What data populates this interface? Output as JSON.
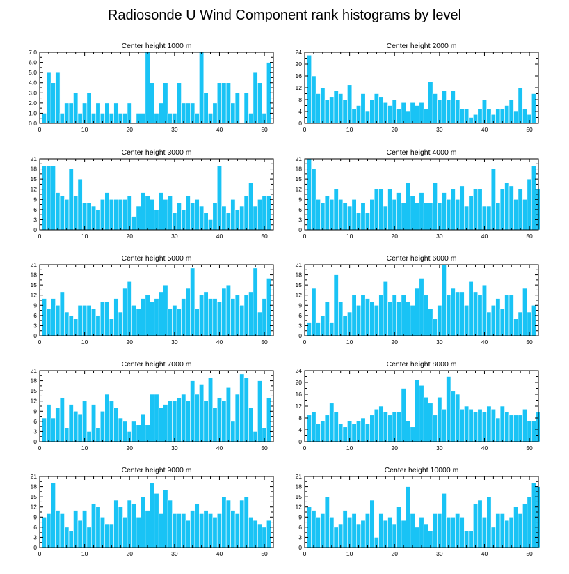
{
  "title": "Radiosonde U Wind Component rank histograms by level",
  "colors": {
    "bar": "#19c3f5",
    "background": "#ffffff",
    "axis": "#000000"
  },
  "chart_data": [
    {
      "type": "bar",
      "title": "Center height 1000 m",
      "xlim": [
        0,
        52
      ],
      "ylim": [
        0,
        7
      ],
      "x_ticks": [
        0,
        10,
        20,
        30,
        40,
        50
      ],
      "y_ticks": [
        0,
        1,
        2,
        3,
        4,
        5,
        6,
        7
      ],
      "y_tick_labels": [
        "0.0",
        "1.0",
        "2.0",
        "3.0",
        "4.0",
        "5.0",
        "6.0",
        "7.0"
      ],
      "values": [
        1,
        5,
        4,
        5,
        1,
        2,
        2,
        3,
        1,
        2,
        3,
        1,
        2,
        1,
        2,
        1,
        2,
        1,
        1,
        2,
        0,
        1,
        1,
        7,
        4,
        1,
        2,
        4,
        1,
        1,
        4,
        2,
        2,
        2,
        1,
        7,
        3,
        1,
        2,
        4,
        4,
        4,
        2,
        3,
        0,
        3,
        1,
        5,
        4,
        1,
        6
      ]
    },
    {
      "type": "bar",
      "title": "Center height 2000 m",
      "xlim": [
        0,
        52
      ],
      "ylim": [
        0,
        24
      ],
      "x_ticks": [
        0,
        10,
        20,
        30,
        40,
        50
      ],
      "y_ticks": [
        0,
        4,
        8,
        12,
        16,
        20,
        24
      ],
      "y_tick_labels": [
        "0",
        "4",
        "8",
        "12",
        "16",
        "20",
        "24"
      ],
      "values": [
        23,
        16,
        10,
        12,
        8,
        9,
        11,
        10,
        8,
        13,
        5,
        6,
        10,
        4,
        8,
        10,
        9,
        7,
        6,
        8,
        5,
        7,
        4,
        7,
        6,
        7,
        5,
        14,
        10,
        8,
        11,
        8,
        11,
        8,
        5,
        5,
        2,
        3,
        5,
        8,
        5,
        3,
        5,
        5,
        6,
        8,
        4,
        12,
        5,
        3,
        10
      ]
    },
    {
      "type": "bar",
      "title": "Center height 3000 m",
      "xlim": [
        0,
        52
      ],
      "ylim": [
        0,
        21
      ],
      "x_ticks": [
        0,
        10,
        20,
        30,
        40,
        50
      ],
      "y_ticks": [
        0,
        3,
        6,
        9,
        12,
        15,
        18,
        21
      ],
      "y_tick_labels": [
        "0",
        "3",
        "6",
        "9",
        "12",
        "15",
        "18",
        "21"
      ],
      "values": [
        19,
        19,
        19,
        11,
        10,
        9,
        18,
        10,
        15,
        8,
        8,
        7,
        6,
        9,
        11,
        9,
        9,
        9,
        9,
        10,
        4,
        7,
        11,
        10,
        9,
        6,
        11,
        9,
        10,
        5,
        8,
        6,
        10,
        8,
        9,
        7,
        5,
        3,
        8,
        19,
        7,
        5,
        9,
        6,
        7,
        10,
        14,
        7,
        9,
        10,
        10
      ]
    },
    {
      "type": "bar",
      "title": "Center height 4000 m",
      "xlim": [
        0,
        52
      ],
      "ylim": [
        0,
        21
      ],
      "x_ticks": [
        0,
        10,
        20,
        30,
        40,
        50
      ],
      "y_ticks": [
        0,
        3,
        6,
        9,
        12,
        15,
        18,
        21
      ],
      "y_tick_labels": [
        "0",
        "3",
        "6",
        "9",
        "12",
        "15",
        "18",
        "21"
      ],
      "values": [
        21,
        18,
        9,
        8,
        10,
        9,
        12,
        9,
        8,
        7,
        9,
        5,
        8,
        5,
        9,
        12,
        12,
        7,
        12,
        9,
        11,
        8,
        14,
        10,
        8,
        11,
        8,
        8,
        14,
        8,
        11,
        9,
        12,
        9,
        13,
        7,
        10,
        12,
        12,
        7,
        7,
        18,
        8,
        12,
        14,
        13,
        9,
        12,
        9,
        15,
        19,
        12
      ]
    },
    {
      "type": "bar",
      "title": "Center height 5000 m",
      "xlim": [
        0,
        52
      ],
      "ylim": [
        0,
        21
      ],
      "x_ticks": [
        0,
        10,
        20,
        30,
        40,
        50
      ],
      "y_ticks": [
        0,
        3,
        6,
        9,
        12,
        15,
        18,
        21
      ],
      "y_tick_labels": [
        "0",
        "3",
        "6",
        "9",
        "12",
        "15",
        "18",
        "21"
      ],
      "values": [
        11,
        8,
        11,
        9,
        13,
        7,
        6,
        5,
        9,
        9,
        9,
        8,
        6,
        10,
        10,
        5,
        11,
        7,
        14,
        16,
        9,
        8,
        11,
        12,
        10,
        11,
        13,
        15,
        8,
        9,
        8,
        11,
        14,
        20,
        8,
        12,
        13,
        11,
        11,
        10,
        14,
        15,
        11,
        12,
        9,
        12,
        13,
        20,
        7,
        11,
        17
      ]
    },
    {
      "type": "bar",
      "title": "Center height 6000 m",
      "xlim": [
        0,
        52
      ],
      "ylim": [
        0,
        21
      ],
      "x_ticks": [
        0,
        10,
        20,
        30,
        40,
        50
      ],
      "y_ticks": [
        0,
        3,
        6,
        9,
        12,
        15,
        18,
        21
      ],
      "y_tick_labels": [
        "0",
        "3",
        "6",
        "9",
        "12",
        "15",
        "18",
        "21"
      ],
      "values": [
        4,
        14,
        4,
        6,
        10,
        4,
        18,
        10,
        6,
        7,
        12,
        9,
        12,
        11,
        10,
        9,
        12,
        16,
        10,
        12,
        10,
        12,
        10,
        9,
        14,
        17,
        12,
        8,
        5,
        9,
        21,
        12,
        14,
        13,
        13,
        9,
        16,
        13,
        12,
        15,
        7,
        9,
        11,
        8,
        12,
        12,
        5,
        7,
        14,
        7,
        9
      ]
    },
    {
      "type": "bar",
      "title": "Center height 7000 m",
      "xlim": [
        0,
        52
      ],
      "ylim": [
        0,
        21
      ],
      "x_ticks": [
        0,
        10,
        20,
        30,
        40,
        50
      ],
      "y_ticks": [
        0,
        3,
        6,
        9,
        12,
        15,
        18,
        21
      ],
      "y_tick_labels": [
        "0",
        "3",
        "6",
        "9",
        "12",
        "15",
        "18",
        "21"
      ],
      "values": [
        7,
        11,
        7,
        10,
        13,
        4,
        11,
        9,
        8,
        12,
        3,
        11,
        4,
        9,
        14,
        12,
        10,
        7,
        6,
        3,
        6,
        5,
        8,
        5,
        14,
        14,
        10,
        11,
        12,
        12,
        13,
        14,
        12,
        18,
        14,
        17,
        12,
        19,
        10,
        13,
        12,
        16,
        6,
        14,
        20,
        19,
        10,
        3,
        18,
        4,
        13
      ]
    },
    {
      "type": "bar",
      "title": "Center height 8000 m",
      "xlim": [
        0,
        52
      ],
      "ylim": [
        0,
        24
      ],
      "x_ticks": [
        0,
        10,
        20,
        30,
        40,
        50
      ],
      "y_ticks": [
        0,
        4,
        8,
        12,
        16,
        20,
        24
      ],
      "y_tick_labels": [
        "0",
        "4",
        "8",
        "12",
        "16",
        "20",
        "24"
      ],
      "values": [
        9,
        10,
        6,
        7,
        9,
        13,
        10,
        6,
        5,
        7,
        6,
        7,
        8,
        6,
        9,
        11,
        12,
        10,
        9,
        10,
        10,
        18,
        7,
        5,
        21,
        19,
        15,
        13,
        9,
        15,
        11,
        22,
        17,
        16,
        11,
        12,
        11,
        10,
        11,
        10,
        12,
        11,
        8,
        12,
        10,
        9,
        9,
        9,
        11,
        7,
        7,
        10
      ]
    },
    {
      "type": "bar",
      "title": "Center height 9000 m",
      "xlim": [
        0,
        52
      ],
      "ylim": [
        0,
        21
      ],
      "x_ticks": [
        0,
        10,
        20,
        30,
        40,
        50
      ],
      "y_ticks": [
        0,
        3,
        6,
        9,
        12,
        15,
        18,
        21
      ],
      "y_tick_labels": [
        "0",
        "3",
        "6",
        "9",
        "12",
        "15",
        "18",
        "21"
      ],
      "values": [
        9,
        10,
        19,
        11,
        10,
        6,
        5,
        11,
        8,
        11,
        6,
        13,
        12,
        9,
        7,
        7,
        14,
        12,
        9,
        14,
        13,
        9,
        15,
        11,
        19,
        16,
        10,
        17,
        14,
        10,
        10,
        10,
        8,
        11,
        13,
        10,
        11,
        10,
        9,
        10,
        15,
        14,
        11,
        10,
        14,
        15,
        9,
        8,
        7,
        6,
        8
      ]
    },
    {
      "type": "bar",
      "title": "Center height 10000 m",
      "xlim": [
        0,
        52
      ],
      "ylim": [
        0,
        21
      ],
      "x_ticks": [
        0,
        10,
        20,
        30,
        40,
        50
      ],
      "y_ticks": [
        0,
        3,
        6,
        9,
        12,
        15,
        18,
        21
      ],
      "y_tick_labels": [
        "0",
        "3",
        "6",
        "9",
        "12",
        "15",
        "18",
        "21"
      ],
      "values": [
        12,
        11,
        9,
        10,
        15,
        9,
        6,
        7,
        11,
        9,
        10,
        7,
        8,
        10,
        14,
        3,
        10,
        8,
        9,
        7,
        12,
        8,
        18,
        10,
        6,
        9,
        7,
        5,
        10,
        10,
        16,
        9,
        9,
        10,
        9,
        5,
        5,
        13,
        14,
        9,
        15,
        6,
        10,
        10,
        8,
        9,
        12,
        10,
        13,
        15,
        19,
        18
      ]
    }
  ]
}
